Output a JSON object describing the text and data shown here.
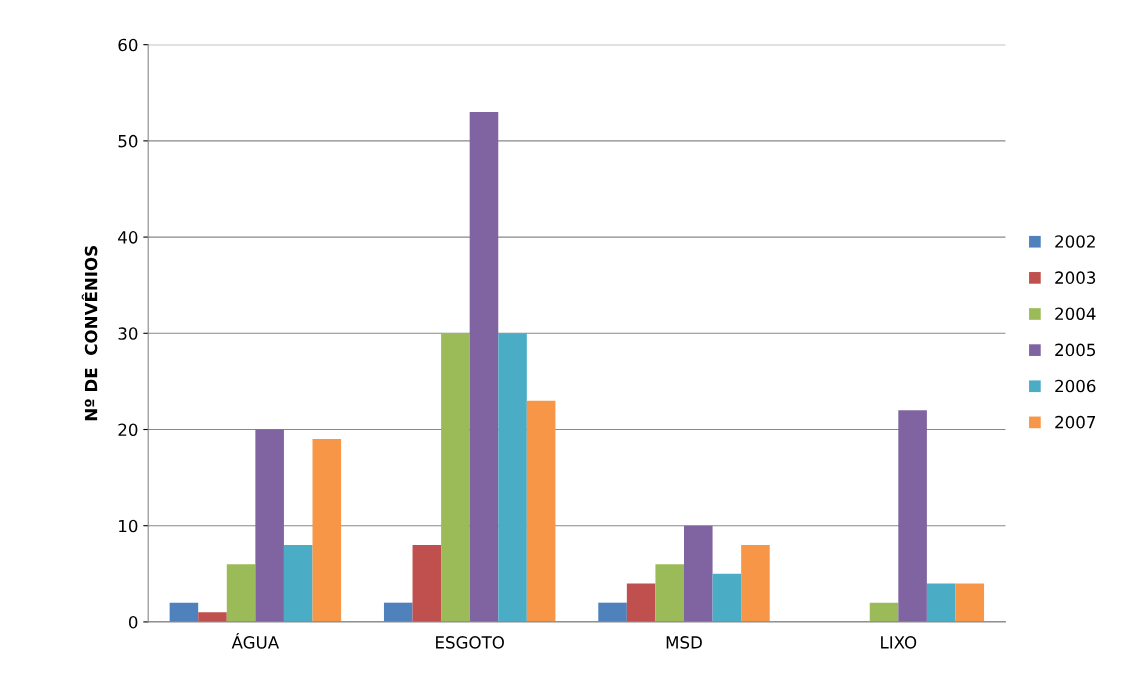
{
  "chart_data": {
    "type": "bar",
    "ylabel": "Nº DE  CONVÊNIOS",
    "categories": [
      "ÁGUA",
      "ESGOTO",
      "MSD",
      "LIXO"
    ],
    "series": [
      {
        "name": "2002",
        "color": "#4f81bd",
        "values": [
          2,
          2,
          2,
          0
        ]
      },
      {
        "name": "2003",
        "color": "#c0504d",
        "values": [
          1,
          8,
          4,
          0
        ]
      },
      {
        "name": "2004",
        "color": "#9bbb59",
        "values": [
          6,
          30,
          6,
          2
        ]
      },
      {
        "name": "2005",
        "color": "#8064a2",
        "values": [
          20,
          53,
          10,
          22
        ]
      },
      {
        "name": "2006",
        "color": "#4bacc6",
        "values": [
          8,
          30,
          5,
          4
        ]
      },
      {
        "name": "2007",
        "color": "#f79646",
        "values": [
          19,
          23,
          8,
          4
        ]
      }
    ],
    "ylim": [
      0,
      60
    ],
    "yticks": [
      0,
      10,
      20,
      30,
      40,
      50,
      60
    ],
    "grid": "y",
    "legend": "right"
  }
}
